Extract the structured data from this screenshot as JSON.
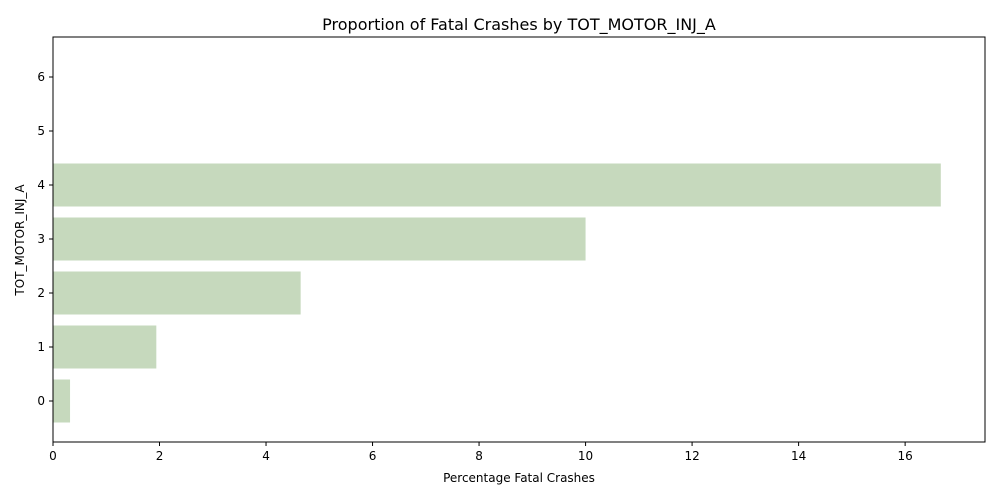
{
  "chart_data": {
    "type": "bar",
    "orientation": "horizontal",
    "title": "Proportion of Fatal Crashes by TOT_MOTOR_INJ_A",
    "xlabel": "Percentage Fatal Crashes",
    "ylabel": "TOT_MOTOR_INJ_A",
    "categories": [
      "0",
      "1",
      "2",
      "3",
      "4",
      "5",
      "6"
    ],
    "values": [
      0.32,
      1.94,
      4.65,
      10.0,
      16.67,
      0,
      0
    ],
    "xlim": [
      0,
      17.5
    ],
    "xticks": [
      0,
      2,
      4,
      6,
      8,
      10,
      12,
      14,
      16
    ],
    "grid": false,
    "bar_color": "#c6d9bd"
  }
}
